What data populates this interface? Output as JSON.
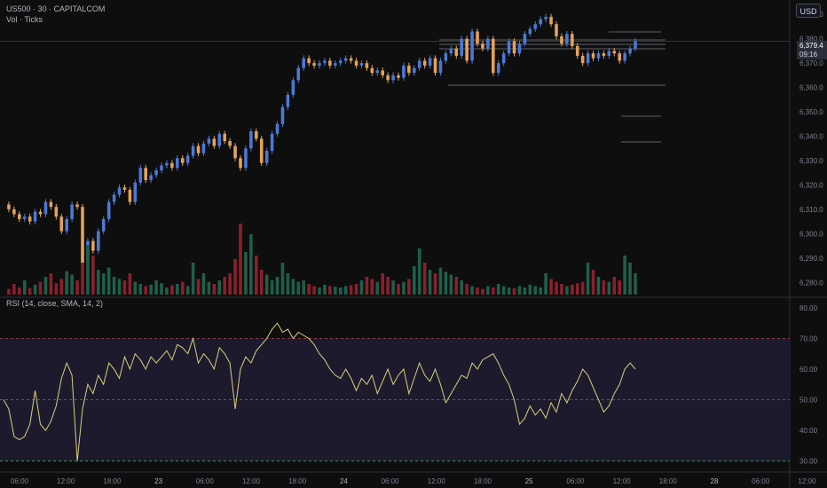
{
  "header": {
    "symbol_line": "US500 · 30 · CAPITALCOM",
    "volume_label": "Vol · Ticks",
    "currency_button": "USD",
    "rsi_label": "RSI (14, close, SMA, 14, 2)"
  },
  "price_scale": {
    "ticks": [
      "6,390.0",
      "6,380.0",
      "6,370.0",
      "6,360.0",
      "6,350.0",
      "6,340.0",
      "6,330.0",
      "6,320.0",
      "6,310.0",
      "6,300.0",
      "6,290.0",
      "6,280.0"
    ],
    "last_price": "6,379.4",
    "countdown": "09:16"
  },
  "rsi_scale": {
    "ticks": [
      "80.00",
      "70.00",
      "60.00",
      "50.00",
      "40.00",
      "30.00"
    ]
  },
  "time_axis": {
    "labels": [
      "06:00",
      "12:00",
      "18:00",
      "23",
      "06:00",
      "12:00",
      "18:00",
      "24",
      "06:00",
      "12:00",
      "18:00",
      "25",
      "06:00",
      "12:00",
      "18:00",
      "28",
      "06:00",
      "12:00"
    ]
  },
  "colors": {
    "up": "#4b79d6",
    "down": "#e6a257",
    "vol_up": "#1f5f4a",
    "vol_down": "#8c1f2c",
    "rsi_line": "#d9d07a",
    "rsi_band": "#1d1a2e",
    "background": "#0e0e0f"
  },
  "chart_data": [
    {
      "type": "candlestick",
      "title": "US500 · 30 · CAPITALCOM",
      "price_range": [
        6275,
        6393
      ],
      "price_path": [
        6312,
        6310,
        6308,
        6306,
        6307,
        6305,
        6309,
        6308,
        6313,
        6311,
        6307,
        6301,
        6306,
        6312,
        6311,
        6288,
        6297,
        6293,
        6301,
        6306,
        6313,
        6316,
        6319,
        6318,
        6313,
        6321,
        6327,
        6322,
        6324,
        6326,
        6328,
        6329,
        6327,
        6331,
        6329,
        6332,
        6336,
        6333,
        6337,
        6339,
        6336,
        6341,
        6338,
        6336,
        6331,
        6327,
        6335,
        6342,
        6339,
        6329,
        6334,
        6341,
        6345,
        6352,
        6357,
        6363,
        6368,
        6372,
        6370,
        6369,
        6370,
        6371,
        6369,
        6370,
        6371,
        6372,
        6371,
        6369,
        6370,
        6368,
        6366,
        6367,
        6365,
        6363,
        6365,
        6364,
        6369,
        6366,
        6368,
        6371,
        6369,
        6372,
        6366,
        6371,
        6374,
        6376,
        6373,
        6380,
        6371,
        6383,
        6378,
        6376,
        6380,
        6366,
        6370,
        6374,
        6379,
        6374,
        6378,
        6382,
        6384,
        6386,
        6388,
        6389,
        6386,
        6381,
        6378,
        6382,
        6377,
        6373,
        6370,
        6374,
        6372,
        6374,
        6373,
        6375,
        6374,
        6371,
        6374,
        6376,
        6379
      ],
      "volume_relative": [
        0.12,
        0.08,
        0.15,
        0.1,
        0.2,
        0.09,
        0.14,
        0.18,
        0.25,
        0.3,
        0.16,
        0.22,
        0.33,
        0.28,
        0.2,
        0.45,
        0.7,
        0.55,
        0.35,
        0.3,
        0.38,
        0.25,
        0.22,
        0.2,
        0.3,
        0.18,
        0.15,
        0.12,
        0.14,
        0.2,
        0.16,
        0.1,
        0.13,
        0.15,
        0.18,
        0.12,
        0.45,
        0.22,
        0.3,
        0.18,
        0.15,
        0.2,
        0.25,
        0.3,
        0.5,
        1.0,
        0.6,
        0.85,
        0.55,
        0.35,
        0.28,
        0.2,
        0.25,
        0.45,
        0.3,
        0.22,
        0.18,
        0.2,
        0.15,
        0.12,
        0.1,
        0.14,
        0.12,
        0.11,
        0.1,
        0.12,
        0.13,
        0.15,
        0.2,
        0.25,
        0.22,
        0.18,
        0.3,
        0.25,
        0.2,
        0.15,
        0.18,
        0.22,
        0.4,
        0.65,
        0.45,
        0.35,
        0.3,
        0.38,
        0.32,
        0.28,
        0.25,
        0.2,
        0.15,
        0.12,
        0.1,
        0.08,
        0.12,
        0.1,
        0.15,
        0.12,
        0.1,
        0.09,
        0.12,
        0.1,
        0.14,
        0.12,
        0.1,
        0.3,
        0.22,
        0.18,
        0.15,
        0.12,
        0.14,
        0.16,
        0.18,
        0.45,
        0.35,
        0.25,
        0.2,
        0.18,
        0.25,
        0.2,
        0.55,
        0.45,
        0.3
      ]
    },
    {
      "type": "line",
      "title": "RSI (14, close, SMA, 14, 2)",
      "ylim": [
        27,
        82
      ],
      "levels": [
        70,
        50,
        30
      ],
      "values": [
        50,
        47,
        38,
        37,
        38,
        42,
        53,
        42,
        40,
        43,
        48,
        57,
        62,
        58,
        30,
        47,
        55,
        52,
        58,
        55,
        62,
        60,
        57,
        64,
        60,
        65,
        63,
        60,
        64,
        62,
        64,
        66,
        63,
        68,
        67,
        65,
        70,
        62,
        65,
        63,
        60,
        67,
        65,
        62,
        47,
        60,
        64,
        62,
        66,
        68,
        70,
        73,
        75,
        72,
        73,
        70,
        72,
        71,
        70,
        68,
        65,
        63,
        60,
        58,
        57,
        60,
        57,
        53,
        57,
        55,
        58,
        52,
        56,
        60,
        55,
        58,
        60,
        52,
        57,
        62,
        58,
        56,
        60,
        55,
        49,
        52,
        55,
        58,
        57,
        62,
        60,
        63,
        64,
        65,
        62,
        58,
        55,
        50,
        42,
        44,
        48,
        45,
        47,
        44,
        49,
        46,
        52,
        49,
        53,
        56,
        60,
        58,
        54,
        50,
        46,
        48,
        52,
        55,
        60,
        62,
        60
      ]
    }
  ]
}
